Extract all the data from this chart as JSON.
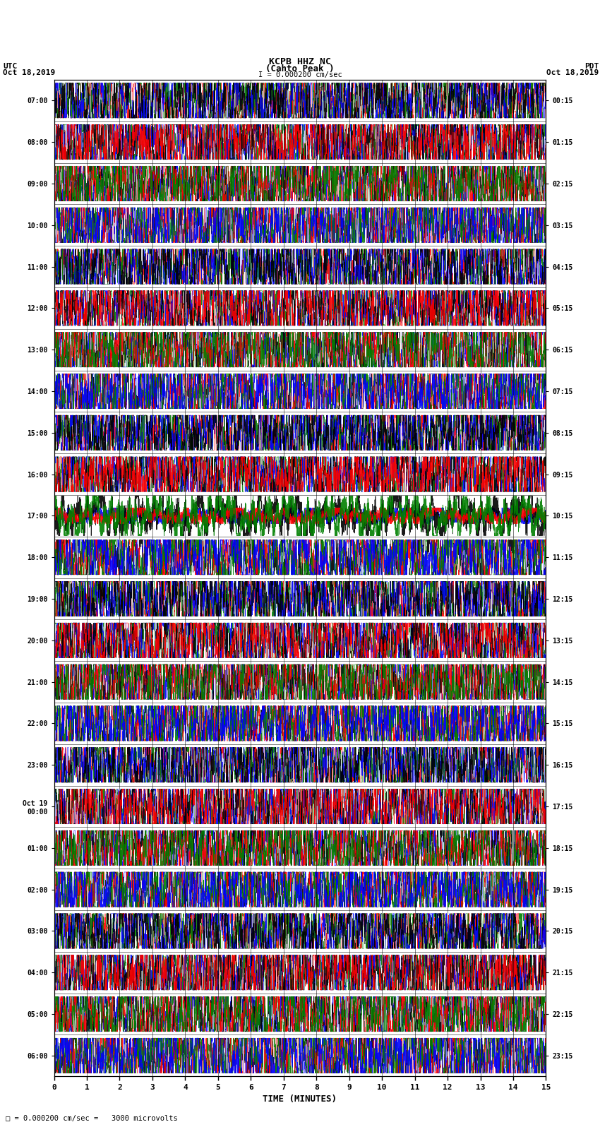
{
  "title_line1": "KCPB HHZ NC",
  "title_line2": "(Cahto Peak )",
  "title_line3": "I = 0.000200 cm/sec",
  "left_header_line1": "UTC",
  "left_header_line2": "Oct 18,2019",
  "right_header_line1": "PDT",
  "right_header_line2": "Oct 18,2019",
  "xlabel": "TIME (MINUTES)",
  "footer": "= 0.000200 cm/sec =   3000 microvolts",
  "left_yticks": [
    "07:00",
    "08:00",
    "09:00",
    "10:00",
    "11:00",
    "12:00",
    "13:00",
    "14:00",
    "15:00",
    "16:00",
    "17:00",
    "18:00",
    "19:00",
    "20:00",
    "21:00",
    "22:00",
    "23:00",
    "Oct 19\n00:00",
    "01:00",
    "02:00",
    "03:00",
    "04:00",
    "05:00",
    "06:00"
  ],
  "right_yticks": [
    "00:15",
    "01:15",
    "02:15",
    "03:15",
    "04:15",
    "05:15",
    "06:15",
    "07:15",
    "08:15",
    "09:15",
    "10:15",
    "11:15",
    "12:15",
    "13:15",
    "14:15",
    "15:15",
    "16:15",
    "17:15",
    "18:15",
    "19:15",
    "20:15",
    "21:15",
    "22:15",
    "23:15"
  ],
  "xtick_labels": [
    "0",
    "1",
    "2",
    "3",
    "4",
    "5",
    "6",
    "7",
    "8",
    "9",
    "10",
    "11",
    "12",
    "13",
    "14",
    "15"
  ],
  "n_rows": 24,
  "samples_per_row": 4500,
  "colors": [
    "red",
    "green",
    "blue",
    "black"
  ],
  "bg_color": "white",
  "figsize": [
    8.5,
    16.13
  ],
  "dpi": 100,
  "row_colors": [
    "red",
    "blue",
    "green",
    "red",
    "red",
    "blue",
    "green",
    "red",
    "red",
    "blue",
    "green",
    "darkgreen",
    "red",
    "blue",
    "green",
    "red",
    "red",
    "blue",
    "green",
    "red",
    "red",
    "blue",
    "green",
    "red"
  ],
  "special_row_index": 10,
  "row_amplitudes": [
    0.42,
    0.42,
    0.42,
    0.42,
    0.42,
    0.42,
    0.42,
    0.42,
    0.42,
    0.42,
    0.48,
    0.42,
    0.42,
    0.42,
    0.42,
    0.42,
    0.42,
    0.42,
    0.42,
    0.42,
    0.42,
    0.42,
    0.42,
    0.42
  ]
}
